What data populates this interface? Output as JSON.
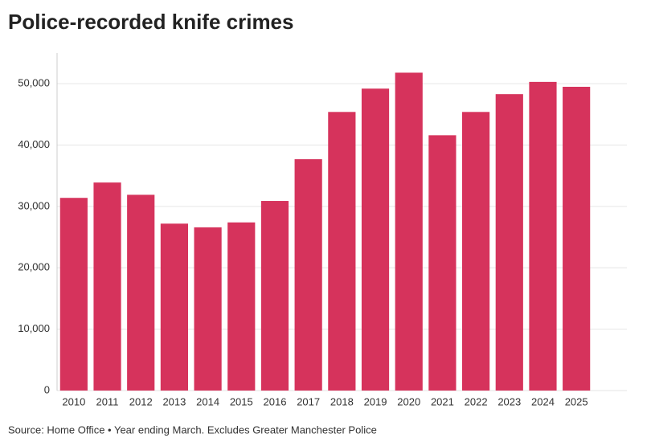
{
  "chart_data": {
    "type": "bar",
    "title": "Police-recorded knife crimes",
    "source": "Source: Home Office • Year ending March. Excludes Greater Manchester Police",
    "categories": [
      "2010",
      "2011",
      "2012",
      "2013",
      "2014",
      "2015",
      "2016",
      "2017",
      "2018",
      "2019",
      "2020",
      "2021",
      "2022",
      "2023",
      "2024",
      "2025"
    ],
    "values": [
      31400,
      33900,
      31900,
      27200,
      26600,
      27400,
      30900,
      37700,
      45400,
      49200,
      51800,
      41600,
      45400,
      48300,
      50300,
      49500
    ],
    "color": "#d6335c",
    "ylim": [
      0,
      55000
    ],
    "yticks": [
      0,
      {
        "value": 10000,
        "label": "10,000"
      },
      {
        "value": 20000,
        "label": "20,000"
      },
      {
        "value": 30000,
        "label": "30,000"
      },
      {
        "value": 40000,
        "label": "40,000"
      },
      {
        "value": 50000,
        "label": "50,000"
      }
    ],
    "grid": true
  }
}
